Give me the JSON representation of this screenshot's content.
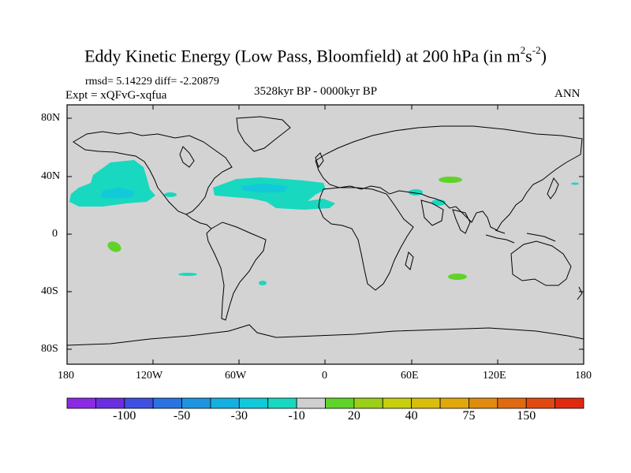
{
  "title": {
    "main": "Eddy Kinetic Energy (Low Pass, Bloomfield) at 200 hPa (in m",
    "exp1": "2",
    "mid": "s",
    "exp2": "-2",
    "close": ")"
  },
  "stats_label": "rmsd= 5.14229 diff= -2.20879",
  "expt_label": "Expt = xQFvG-xqfua",
  "period_label": "3528kyr BP - 0000kyr BP",
  "season_label": "ANN",
  "lat_ticks": [
    "80N",
    "40N",
    "0",
    "40S",
    "80S"
  ],
  "lon_ticks": [
    "180",
    "120W",
    "60W",
    "0",
    "60E",
    "120E",
    "180"
  ],
  "colorbar": {
    "colors": [
      "#8a2be2",
      "#6a2ee0",
      "#3f4fe0",
      "#2a73e0",
      "#1f95e0",
      "#15b0e0",
      "#12c9d9",
      "#18d8bf",
      "#cfcfcf",
      "#5fd32a",
      "#9bcf1a",
      "#c8cf10",
      "#d9be0e",
      "#e0a80c",
      "#e08a10",
      "#e06a12",
      "#e04a12",
      "#e02a10"
    ],
    "labels": [
      {
        "text": "-100",
        "after_box": 2
      },
      {
        "text": "-50",
        "after_box": 4
      },
      {
        "text": "-30",
        "after_box": 6
      },
      {
        "text": "-10",
        "after_box": 8
      },
      {
        "text": "20",
        "after_box": 10
      },
      {
        "text": "40",
        "after_box": 12
      },
      {
        "text": "75",
        "after_box": 14
      },
      {
        "text": "150",
        "after_box": 16
      }
    ]
  },
  "colors": {
    "land_ocean": "#d3d3d3",
    "neg_light": "#18d8bf",
    "neg_dark": "#12c9d9",
    "pos_green": "#5fd32a",
    "coast": "#000000"
  }
}
